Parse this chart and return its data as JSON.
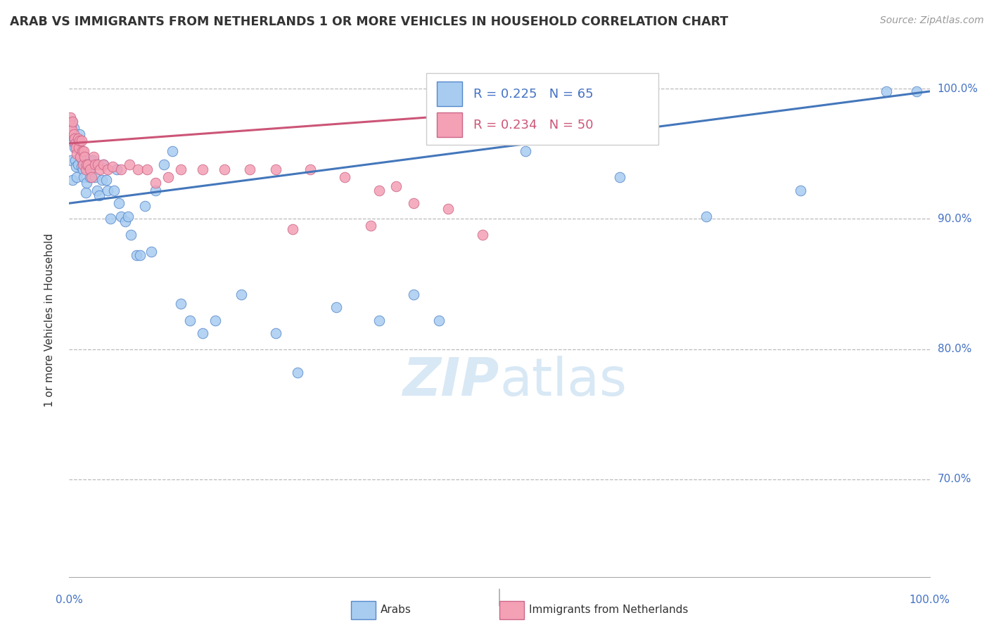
{
  "title": "ARAB VS IMMIGRANTS FROM NETHERLANDS 1 OR MORE VEHICLES IN HOUSEHOLD CORRELATION CHART",
  "source": "Source: ZipAtlas.com",
  "ylabel": "1 or more Vehicles in Household",
  "ytick_labels": [
    "70.0%",
    "80.0%",
    "90.0%",
    "100.0%"
  ],
  "ytick_values": [
    0.7,
    0.8,
    0.9,
    1.0
  ],
  "legend_label1": "Arabs",
  "legend_label2": "Immigrants from Netherlands",
  "r_blue": 0.225,
  "n_blue": 65,
  "r_pink": 0.234,
  "n_pink": 50,
  "blue_color": "#A8CCF0",
  "pink_color": "#F4A0B5",
  "blue_edge_color": "#5588CC",
  "pink_edge_color": "#CC6688",
  "blue_line_color": "#4477BB",
  "pink_line_color": "#CC5577",
  "watermark_color": "#D8E8F5",
  "blue_scatter_x": [
    0.001,
    0.002,
    0.003,
    0.004,
    0.005,
    0.005,
    0.006,
    0.007,
    0.008,
    0.009,
    0.01,
    0.011,
    0.012,
    0.013,
    0.014,
    0.015,
    0.016,
    0.017,
    0.018,
    0.019,
    0.02,
    0.022,
    0.024,
    0.025,
    0.027,
    0.028,
    0.03,
    0.032,
    0.035,
    0.038,
    0.04,
    0.043,
    0.045,
    0.048,
    0.052,
    0.055,
    0.058,
    0.06,
    0.065,
    0.068,
    0.072,
    0.078,
    0.082,
    0.088,
    0.095,
    0.1,
    0.11,
    0.12,
    0.13,
    0.14,
    0.155,
    0.17,
    0.2,
    0.24,
    0.265,
    0.31,
    0.36,
    0.4,
    0.43,
    0.53,
    0.64,
    0.74,
    0.85,
    0.95,
    0.985
  ],
  "blue_scatter_y": [
    0.96,
    0.945,
    0.975,
    0.93,
    0.97,
    0.962,
    0.955,
    0.945,
    0.94,
    0.932,
    0.942,
    0.958,
    0.965,
    0.948,
    0.94,
    0.945,
    0.938,
    0.932,
    0.948,
    0.92,
    0.928,
    0.942,
    0.932,
    0.94,
    0.945,
    0.945,
    0.932,
    0.922,
    0.918,
    0.93,
    0.942,
    0.93,
    0.922,
    0.9,
    0.922,
    0.938,
    0.912,
    0.902,
    0.898,
    0.902,
    0.888,
    0.872,
    0.872,
    0.91,
    0.875,
    0.922,
    0.942,
    0.952,
    0.835,
    0.822,
    0.812,
    0.822,
    0.842,
    0.812,
    0.782,
    0.832,
    0.822,
    0.842,
    0.822,
    0.952,
    0.932,
    0.902,
    0.922,
    0.998,
    0.998
  ],
  "pink_scatter_x": [
    0.001,
    0.002,
    0.003,
    0.004,
    0.005,
    0.006,
    0.007,
    0.008,
    0.009,
    0.01,
    0.011,
    0.012,
    0.013,
    0.014,
    0.015,
    0.016,
    0.017,
    0.018,
    0.019,
    0.02,
    0.022,
    0.024,
    0.026,
    0.028,
    0.03,
    0.033,
    0.036,
    0.04,
    0.045,
    0.05,
    0.06,
    0.07,
    0.08,
    0.09,
    0.1,
    0.115,
    0.13,
    0.155,
    0.18,
    0.21,
    0.24,
    0.28,
    0.32,
    0.36,
    0.4,
    0.44,
    0.48,
    0.35,
    0.26,
    0.38
  ],
  "pink_scatter_y": [
    0.978,
    0.972,
    0.968,
    0.975,
    0.965,
    0.962,
    0.958,
    0.955,
    0.95,
    0.962,
    0.955,
    0.96,
    0.948,
    0.96,
    0.952,
    0.942,
    0.952,
    0.948,
    0.938,
    0.942,
    0.942,
    0.938,
    0.932,
    0.948,
    0.942,
    0.942,
    0.938,
    0.942,
    0.938,
    0.94,
    0.938,
    0.942,
    0.938,
    0.938,
    0.928,
    0.932,
    0.938,
    0.938,
    0.938,
    0.938,
    0.938,
    0.938,
    0.932,
    0.922,
    0.912,
    0.908,
    0.888,
    0.895,
    0.892,
    0.925
  ],
  "blue_trend_x": [
    0.0,
    1.0
  ],
  "blue_trend_y": [
    0.912,
    0.998
  ],
  "pink_trend_x": [
    0.0,
    0.5
  ],
  "pink_trend_y": [
    0.958,
    0.982
  ],
  "xlim": [
    0.0,
    1.0
  ],
  "ylim": [
    0.625,
    1.02
  ]
}
